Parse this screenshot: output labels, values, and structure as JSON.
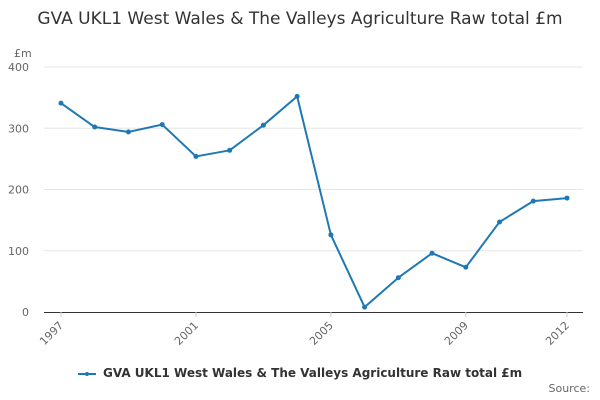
{
  "title": "GVA UKL1 West Wales & The Valleys Agriculture Raw total £m",
  "credit": "Source:",
  "colors": {
    "series": "#1f78b4",
    "grid": "#e6e6e6",
    "axis": "#333333"
  },
  "chart_data": {
    "type": "line",
    "title": "GVA UKL1 West Wales & The Valleys Agriculture Raw total £m",
    "ylabel": "£m",
    "xlabel": "",
    "ylim": [
      0,
      400
    ],
    "xlim": [
      1997,
      2012
    ],
    "y_ticks": [
      0,
      100,
      200,
      300,
      400
    ],
    "x_tick_labels": [
      "1997",
      "2001",
      "2005",
      "2009",
      "2012"
    ],
    "grid": true,
    "legend_position": "bottom",
    "series": [
      {
        "name": "GVA UKL1 West Wales & The Valleys Agriculture Raw total £m",
        "x": [
          1997,
          1998,
          1999,
          2000,
          2001,
          2002,
          2003,
          2004,
          2005,
          2006,
          2007,
          2008,
          2009,
          2010,
          2011,
          2012
        ],
        "values": [
          341,
          302,
          294,
          306,
          254,
          264,
          305,
          352,
          126,
          8,
          56,
          96,
          73,
          147,
          181,
          186
        ]
      }
    ]
  }
}
